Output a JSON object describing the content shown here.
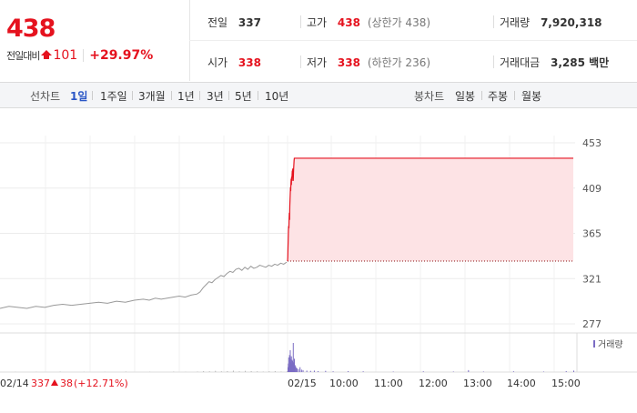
{
  "quote": {
    "price": "438",
    "change_label": "전일대비",
    "change_value": "101",
    "change_rate": "+29.97%"
  },
  "info": {
    "prev_close_label": "전일",
    "prev_close": "337",
    "high_label": "고가",
    "high": "438",
    "upper_limit": "(상한가 438)",
    "volume_label": "거래량",
    "volume": "7,920,318",
    "open_label": "시가",
    "open": "338",
    "low_label": "저가",
    "low": "338",
    "lower_limit": "(하한가 236)",
    "trade_value_label": "거래대금",
    "trade_value": "3,285 백만"
  },
  "toolbar": {
    "line_chart_label": "선차트",
    "periods": [
      "1일",
      "1주일",
      "3개월",
      "1년",
      "3년",
      "5년",
      "10년"
    ],
    "active_period": "1일",
    "candle_chart_label": "봉차트",
    "candles": [
      "일봉",
      "주봉",
      "월봉"
    ]
  },
  "colors": {
    "up": "#e5121e",
    "prev_day_line": "#999999",
    "fill": "#fde3e5",
    "volume": "#7b6cc4",
    "active_tab": "#2a56c6"
  },
  "chart_data": {
    "type": "line",
    "ylim": [
      277,
      453
    ],
    "y_ticks": [
      "453",
      "409",
      "365",
      "321",
      "277"
    ],
    "x_ticks": [
      "02/15",
      "10:00",
      "11:00",
      "12:00",
      "13:00",
      "14:00",
      "15:00"
    ],
    "prev_day_label": "02/14",
    "prev_day_close": "337",
    "prev_day_change": "38",
    "prev_day_rate": "(+12.71%)",
    "reference_line": 338,
    "volume_legend": "거래량",
    "prev_day_series": [
      [
        0,
        292
      ],
      [
        3,
        294
      ],
      [
        6,
        293
      ],
      [
        9,
        292
      ],
      [
        12,
        294
      ],
      [
        15,
        293
      ],
      [
        18,
        295
      ],
      [
        21,
        296
      ],
      [
        24,
        295
      ],
      [
        27,
        296
      ],
      [
        30,
        297
      ],
      [
        33,
        298
      ],
      [
        36,
        297
      ],
      [
        39,
        299
      ],
      [
        42,
        298
      ],
      [
        45,
        300
      ],
      [
        48,
        301
      ],
      [
        50,
        300
      ],
      [
        52,
        302
      ],
      [
        54,
        301
      ],
      [
        56,
        302
      ],
      [
        58,
        303
      ],
      [
        60,
        304
      ],
      [
        62,
        303
      ],
      [
        64,
        305
      ],
      [
        66,
        306
      ],
      [
        67,
        308
      ],
      [
        68,
        312
      ],
      [
        69,
        315
      ],
      [
        70,
        318
      ],
      [
        71,
        317
      ],
      [
        72,
        320
      ],
      [
        73,
        322
      ],
      [
        74,
        324
      ],
      [
        75,
        323
      ],
      [
        76,
        326
      ],
      [
        77,
        328
      ],
      [
        78,
        327
      ],
      [
        79,
        330
      ],
      [
        80,
        331
      ],
      [
        81,
        329
      ],
      [
        82,
        332
      ],
      [
        83,
        330
      ],
      [
        84,
        333
      ],
      [
        85,
        331
      ],
      [
        86,
        332
      ],
      [
        87,
        334
      ],
      [
        88,
        333
      ],
      [
        89,
        332
      ],
      [
        90,
        334
      ],
      [
        91,
        333
      ],
      [
        92,
        335
      ],
      [
        93,
        334
      ],
      [
        94,
        336
      ],
      [
        95,
        335
      ],
      [
        96,
        337
      ]
    ],
    "day_series": [
      [
        0,
        338
      ],
      [
        0.3,
        342
      ],
      [
        0.6,
        352
      ],
      [
        0.9,
        360
      ],
      [
        1.2,
        368
      ],
      [
        1.5,
        372
      ],
      [
        1.8,
        370
      ],
      [
        2.1,
        380
      ],
      [
        2.4,
        385
      ],
      [
        2.7,
        378
      ],
      [
        3.0,
        392
      ],
      [
        3.3,
        398
      ],
      [
        3.6,
        404
      ],
      [
        3.9,
        410
      ],
      [
        4.2,
        406
      ],
      [
        4.5,
        414
      ],
      [
        4.8,
        418
      ],
      [
        5.1,
        412
      ],
      [
        5.4,
        420
      ],
      [
        5.7,
        416
      ],
      [
        6.0,
        422
      ],
      [
        6.3,
        426
      ],
      [
        6.6,
        420
      ],
      [
        6.9,
        428
      ],
      [
        7.2,
        424
      ],
      [
        7.5,
        416
      ],
      [
        7.8,
        422
      ],
      [
        8.1,
        428
      ],
      [
        8.4,
        432
      ],
      [
        8.7,
        436
      ],
      [
        9.0,
        438
      ],
      [
        12,
        438
      ],
      [
        30,
        438
      ],
      [
        60,
        438
      ],
      [
        90,
        438
      ],
      [
        120,
        438
      ],
      [
        150,
        438
      ],
      [
        180,
        438
      ],
      [
        210,
        438
      ],
      [
        240,
        438
      ],
      [
        270,
        438
      ],
      [
        300,
        438
      ],
      [
        330,
        438
      ],
      [
        360,
        438
      ],
      [
        380,
        438
      ]
    ],
    "prev_day_volume": [
      [
        5,
        1
      ],
      [
        12,
        1
      ],
      [
        20,
        2
      ],
      [
        28,
        1
      ],
      [
        35,
        1
      ],
      [
        42,
        2
      ],
      [
        50,
        1
      ],
      [
        58,
        2
      ],
      [
        62,
        1
      ],
      [
        66,
        2
      ],
      [
        68,
        4
      ],
      [
        70,
        3
      ],
      [
        72,
        5
      ],
      [
        74,
        3
      ],
      [
        76,
        4
      ],
      [
        78,
        6
      ],
      [
        80,
        3
      ],
      [
        82,
        5
      ],
      [
        84,
        4
      ],
      [
        86,
        3
      ],
      [
        88,
        2
      ],
      [
        90,
        3
      ],
      [
        92,
        4
      ],
      [
        94,
        2
      ],
      [
        96,
        3
      ]
    ],
    "day_volume": [
      [
        0,
        20
      ],
      [
        0.5,
        35
      ],
      [
        1,
        60
      ],
      [
        1.5,
        28
      ],
      [
        2,
        70
      ],
      [
        2.5,
        45
      ],
      [
        3,
        90
      ],
      [
        3.5,
        55
      ],
      [
        4,
        40
      ],
      [
        4.5,
        65
      ],
      [
        5,
        35
      ],
      [
        5.5,
        50
      ],
      [
        6,
        30
      ],
      [
        6.5,
        45
      ],
      [
        7,
        120
      ],
      [
        7.5,
        40
      ],
      [
        8,
        35
      ],
      [
        8.5,
        55
      ],
      [
        9,
        30
      ],
      [
        10,
        25
      ],
      [
        11,
        18
      ],
      [
        12,
        15
      ],
      [
        14,
        12
      ],
      [
        16,
        20
      ],
      [
        18,
        10
      ],
      [
        20,
        8
      ],
      [
        25,
        6
      ],
      [
        30,
        5
      ],
      [
        35,
        6
      ],
      [
        40,
        4
      ],
      [
        50,
        5
      ],
      [
        60,
        3
      ],
      [
        80,
        4
      ],
      [
        100,
        3
      ],
      [
        140,
        2
      ],
      [
        180,
        3
      ],
      [
        220,
        2
      ],
      [
        240,
        8
      ],
      [
        260,
        2
      ],
      [
        300,
        3
      ],
      [
        340,
        2
      ],
      [
        370,
        4
      ],
      [
        380,
        6
      ]
    ],
    "volume_max": 120
  }
}
